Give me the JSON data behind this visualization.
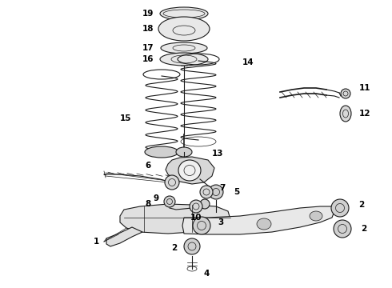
{
  "bg_color": "#ffffff",
  "line_color": "#1a1a1a",
  "label_color": "#000000",
  "fig_w": 4.9,
  "fig_h": 3.6,
  "dpi": 100,
  "xlim": [
    0,
    490
  ],
  "ylim": [
    0,
    360
  ],
  "fontsize": 7.5
}
